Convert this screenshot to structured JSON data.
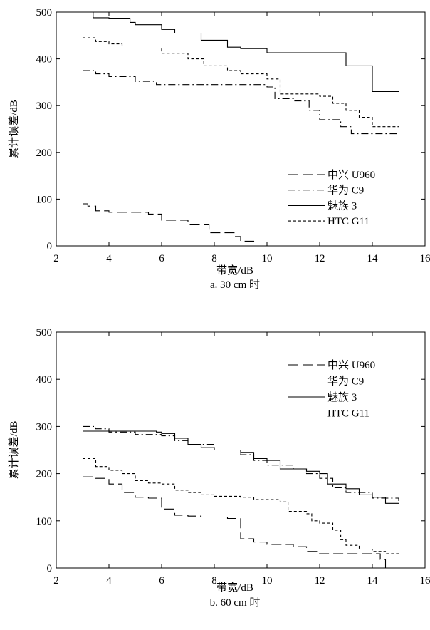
{
  "chart_data": [
    {
      "type": "line",
      "title": "",
      "xlabel": "带宽/dB",
      "ylabel": "累计误差/dB",
      "caption": "a. 30 cm 时",
      "xlim": [
        2,
        16
      ],
      "ylim": [
        0,
        500
      ],
      "xticks": [
        "2",
        "4",
        "6",
        "8",
        "10",
        "12",
        "14",
        "16"
      ],
      "yticks": [
        "0",
        "100",
        "200",
        "300",
        "400",
        "500"
      ],
      "legend_position": "lower-right",
      "series": [
        {
          "name": "中兴 U960",
          "style": "long-dash",
          "points": [
            [
              3.0,
              90
            ],
            [
              3.2,
              85
            ],
            [
              3.5,
              75
            ],
            [
              4.0,
              72
            ],
            [
              5.5,
              68
            ],
            [
              6.0,
              55
            ],
            [
              7.0,
              45
            ],
            [
              7.8,
              28
            ],
            [
              8.8,
              20
            ],
            [
              9.0,
              10
            ],
            [
              9.5,
              0
            ]
          ]
        },
        {
          "name": "华为 C9",
          "style": "dash-dot",
          "points": [
            [
              3.0,
              375
            ],
            [
              3.5,
              368
            ],
            [
              4.0,
              362
            ],
            [
              5.0,
              352
            ],
            [
              5.8,
              345
            ],
            [
              10.0,
              340
            ],
            [
              10.3,
              315
            ],
            [
              11.0,
              310
            ],
            [
              11.6,
              290
            ],
            [
              12.0,
              270
            ],
            [
              12.8,
              255
            ],
            [
              13.2,
              240
            ],
            [
              14.0,
              240
            ],
            [
              15.0,
              240
            ]
          ]
        },
        {
          "name": "魅族 3",
          "style": "solid",
          "points": [
            [
              3.0,
              500
            ],
            [
              3.4,
              488
            ],
            [
              4.0,
              487
            ],
            [
              4.8,
              478
            ],
            [
              5.0,
              473
            ],
            [
              6.0,
              463
            ],
            [
              6.5,
              455
            ],
            [
              7.5,
              440
            ],
            [
              8.5,
              425
            ],
            [
              9.0,
              422
            ],
            [
              10.0,
              413
            ],
            [
              12.9,
              413
            ],
            [
              13.0,
              385
            ],
            [
              13.6,
              385
            ],
            [
              14.0,
              330
            ],
            [
              15.0,
              330
            ]
          ]
        },
        {
          "name": "HTC G11",
          "style": "dotted",
          "points": [
            [
              3.0,
              445
            ],
            [
              3.5,
              437
            ],
            [
              4.0,
              432
            ],
            [
              4.5,
              423
            ],
            [
              6.0,
              412
            ],
            [
              7.0,
              400
            ],
            [
              7.6,
              385
            ],
            [
              8.5,
              375
            ],
            [
              9.0,
              368
            ],
            [
              10.0,
              357
            ],
            [
              10.5,
              325
            ],
            [
              12.0,
              320
            ],
            [
              12.5,
              305
            ],
            [
              13.0,
              290
            ],
            [
              13.5,
              275
            ],
            [
              14.0,
              255
            ],
            [
              15.0,
              255
            ]
          ]
        }
      ]
    },
    {
      "type": "line",
      "title": "",
      "xlabel": "带宽/dB",
      "ylabel": "累计误差/dB",
      "caption": "b. 60 cm 时",
      "xlim": [
        2,
        16
      ],
      "ylim": [
        0,
        500
      ],
      "xticks": [
        "2",
        "4",
        "6",
        "8",
        "10",
        "12",
        "14",
        "16"
      ],
      "yticks": [
        "0",
        "100",
        "200",
        "300",
        "400",
        "500"
      ],
      "legend_position": "upper-right",
      "series": [
        {
          "name": "中兴 U960",
          "style": "long-dash",
          "points": [
            [
              3.0,
              193
            ],
            [
              3.5,
              190
            ],
            [
              4.0,
              178
            ],
            [
              4.5,
              160
            ],
            [
              5.0,
              150
            ],
            [
              5.5,
              148
            ],
            [
              6.0,
              125
            ],
            [
              6.5,
              112
            ],
            [
              7.0,
              110
            ],
            [
              7.5,
              108
            ],
            [
              8.5,
              105
            ],
            [
              9.0,
              62
            ],
            [
              9.5,
              55
            ],
            [
              10.0,
              50
            ],
            [
              11.0,
              45
            ],
            [
              11.5,
              35
            ],
            [
              12.0,
              30
            ],
            [
              14.0,
              30
            ],
            [
              14.3,
              18
            ],
            [
              14.5,
              0
            ]
          ]
        },
        {
          "name": "华为 C9",
          "style": "dash-dot",
          "points": [
            [
              3.0,
              300
            ],
            [
              3.5,
              295
            ],
            [
              4.0,
              288
            ],
            [
              5.0,
              283
            ],
            [
              6.0,
              280
            ],
            [
              6.5,
              270
            ],
            [
              7.0,
              262
            ],
            [
              8.0,
              250
            ],
            [
              9.0,
              240
            ],
            [
              9.5,
              228
            ],
            [
              10.0,
              218
            ],
            [
              11.0,
              210
            ],
            [
              11.5,
              200
            ],
            [
              12.0,
              190
            ],
            [
              12.5,
              170
            ],
            [
              13.0,
              160
            ],
            [
              14.0,
              148
            ],
            [
              15.0,
              142
            ]
          ]
        },
        {
          "name": "魅族 3",
          "style": "solid",
          "points": [
            [
              3.0,
              290
            ],
            [
              4.0,
              290
            ],
            [
              5.0,
              290
            ],
            [
              5.8,
              288
            ],
            [
              6.0,
              285
            ],
            [
              6.5,
              275
            ],
            [
              7.0,
              262
            ],
            [
              7.5,
              255
            ],
            [
              8.0,
              250
            ],
            [
              9.0,
              245
            ],
            [
              9.5,
              232
            ],
            [
              10.0,
              228
            ],
            [
              10.5,
              210
            ],
            [
              11.5,
              205
            ],
            [
              12.0,
              200
            ],
            [
              12.3,
              178
            ],
            [
              13.0,
              168
            ],
            [
              13.5,
              155
            ],
            [
              14.0,
              150
            ],
            [
              14.5,
              137
            ],
            [
              15.0,
              137
            ]
          ]
        },
        {
          "name": "HTC G11",
          "style": "dotted",
          "points": [
            [
              3.0,
              232
            ],
            [
              3.5,
              215
            ],
            [
              4.0,
              207
            ],
            [
              4.5,
              200
            ],
            [
              5.0,
              185
            ],
            [
              5.5,
              180
            ],
            [
              6.0,
              178
            ],
            [
              6.5,
              165
            ],
            [
              7.0,
              160
            ],
            [
              7.5,
              155
            ],
            [
              8.0,
              152
            ],
            [
              9.0,
              150
            ],
            [
              9.5,
              145
            ],
            [
              10.5,
              140
            ],
            [
              10.8,
              120
            ],
            [
              11.5,
              115
            ],
            [
              11.7,
              100
            ],
            [
              12.0,
              95
            ],
            [
              12.5,
              80
            ],
            [
              12.8,
              60
            ],
            [
              13.0,
              48
            ],
            [
              13.5,
              40
            ],
            [
              14.0,
              35
            ],
            [
              14.5,
              30
            ],
            [
              15.0,
              30
            ]
          ]
        }
      ]
    }
  ]
}
